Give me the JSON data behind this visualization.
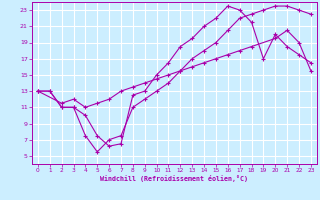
{
  "xlabel": "Windchill (Refroidissement éolien,°C)",
  "bg_color": "#cceeff",
  "grid_color": "#ffffff",
  "line_color": "#aa00aa",
  "xlim": [
    -0.5,
    23.5
  ],
  "ylim": [
    4,
    24
  ],
  "xticks": [
    0,
    1,
    2,
    3,
    4,
    5,
    6,
    7,
    8,
    9,
    10,
    11,
    12,
    13,
    14,
    15,
    16,
    17,
    18,
    19,
    20,
    21,
    22,
    23
  ],
  "yticks": [
    5,
    7,
    9,
    11,
    13,
    15,
    17,
    19,
    21,
    23
  ],
  "line1_x": [
    0,
    1,
    2,
    3,
    4,
    5,
    6,
    7,
    8,
    9,
    10,
    11,
    12,
    13,
    14,
    15,
    16,
    17,
    18,
    19,
    20,
    21,
    22,
    23
  ],
  "line1_y": [
    13,
    13,
    11,
    11,
    10,
    7.5,
    6.2,
    6.5,
    12.5,
    13,
    15,
    16.5,
    18.5,
    19.5,
    21,
    22,
    23.5,
    23,
    21.5,
    17,
    20,
    18.5,
    17.5,
    16.5
  ],
  "line2_x": [
    0,
    2,
    3,
    4,
    5,
    6,
    7,
    8,
    9,
    10,
    11,
    12,
    13,
    14,
    15,
    16,
    17,
    18,
    20,
    21,
    22,
    23
  ],
  "line2_y": [
    13,
    11.5,
    12,
    11,
    11.5,
    12,
    13,
    13.5,
    14,
    14.5,
    15,
    15.5,
    16,
    16.5,
    17,
    17.5,
    18,
    18.5,
    19.5,
    20.5,
    19,
    15.5
  ],
  "line3_x": [
    0,
    1,
    2,
    3,
    4,
    5,
    6,
    7,
    8,
    9,
    10,
    11,
    12,
    13,
    14,
    15,
    16,
    17,
    18,
    19,
    20,
    21,
    22,
    23
  ],
  "line3_y": [
    13,
    13,
    11,
    11,
    7.5,
    5.5,
    7,
    7.5,
    11,
    12,
    13,
    14,
    15.5,
    17,
    18,
    19,
    20.5,
    22,
    22.5,
    23,
    23.5,
    23.5,
    23,
    22.5
  ]
}
